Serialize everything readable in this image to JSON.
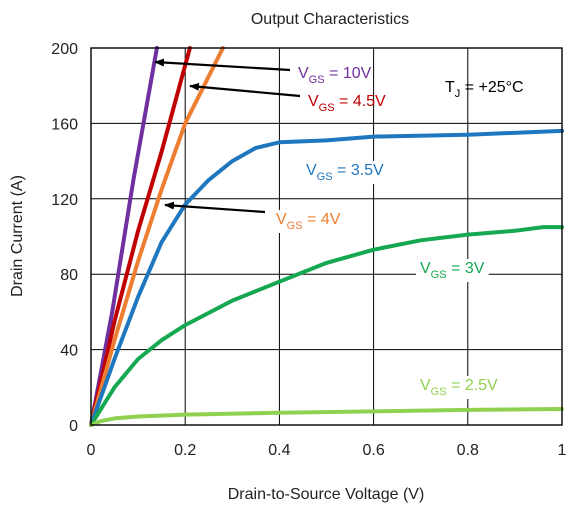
{
  "chart_data": {
    "type": "line",
    "title": "Output Characteristics",
    "xlabel": "Drain-to-Source Voltage (V)",
    "ylabel": "Drain Current (A)",
    "xlim": [
      0,
      1
    ],
    "ylim": [
      0,
      200
    ],
    "x_ticks": [
      "0",
      "0.2",
      "0.4",
      "0.6",
      "0.8",
      "1"
    ],
    "y_ticks": [
      "0",
      "40",
      "80",
      "120",
      "160",
      "200"
    ],
    "grid": true,
    "annotation": {
      "main": "T",
      "sub": "J",
      "rest": " = +25°C"
    },
    "series": [
      {
        "name": "VGS = 10V",
        "label_main": "V",
        "label_sub": "GS",
        "label_rest": " = 10V",
        "color": "#7030A0",
        "points": [
          [
            0,
            0
          ],
          [
            0.045,
            60
          ],
          [
            0.09,
            130
          ],
          [
            0.14,
            200
          ]
        ]
      },
      {
        "name": "VGS = 4.5V",
        "label_main": "V",
        "label_sub": "GS",
        "label_rest": " = 4.5V",
        "color": "#C00000",
        "points": [
          [
            0,
            0
          ],
          [
            0.05,
            55
          ],
          [
            0.1,
            103
          ],
          [
            0.15,
            145
          ],
          [
            0.21,
            200
          ]
        ]
      },
      {
        "name": "VGS = 4V",
        "label_main": "V",
        "label_sub": "GS",
        "label_rest": " = 4V",
        "color": "#ED7D31",
        "points": [
          [
            0,
            0
          ],
          [
            0.05,
            45
          ],
          [
            0.1,
            87
          ],
          [
            0.15,
            125
          ],
          [
            0.2,
            160
          ],
          [
            0.28,
            200
          ]
        ]
      },
      {
        "name": "VGS = 3.5V",
        "label_main": "V",
        "label_sub": "GS",
        "label_rest": " = 3.5V",
        "color": "#1F77C0",
        "points": [
          [
            0,
            0
          ],
          [
            0.05,
            35
          ],
          [
            0.1,
            68
          ],
          [
            0.15,
            97
          ],
          [
            0.2,
            117
          ],
          [
            0.25,
            130
          ],
          [
            0.3,
            140
          ],
          [
            0.35,
            147
          ],
          [
            0.4,
            150
          ],
          [
            0.5,
            151
          ],
          [
            0.6,
            153
          ],
          [
            0.8,
            154
          ],
          [
            1.0,
            156
          ]
        ]
      },
      {
        "name": "VGS = 3V",
        "label_main": "V",
        "label_sub": "GS",
        "label_rest": " = 3V",
        "color": "#16A850",
        "points": [
          [
            0,
            0
          ],
          [
            0.05,
            20
          ],
          [
            0.1,
            35
          ],
          [
            0.15,
            45
          ],
          [
            0.2,
            53
          ],
          [
            0.3,
            66
          ],
          [
            0.4,
            76
          ],
          [
            0.5,
            86
          ],
          [
            0.6,
            93
          ],
          [
            0.7,
            98
          ],
          [
            0.8,
            101
          ],
          [
            0.9,
            103
          ],
          [
            0.96,
            105
          ],
          [
            1.0,
            105
          ]
        ]
      },
      {
        "name": "VGS = 2.5V",
        "label_main": "V",
        "label_sub": "GS",
        "label_rest": " = 2.5V",
        "color": "#8FD14F",
        "points": [
          [
            0,
            0
          ],
          [
            0.02,
            2
          ],
          [
            0.05,
            3.5
          ],
          [
            0.1,
            4.5
          ],
          [
            0.2,
            5.5
          ],
          [
            0.4,
            6.5
          ],
          [
            0.6,
            7.2
          ],
          [
            0.8,
            8.0
          ],
          [
            1.0,
            8.5
          ]
        ]
      }
    ]
  }
}
